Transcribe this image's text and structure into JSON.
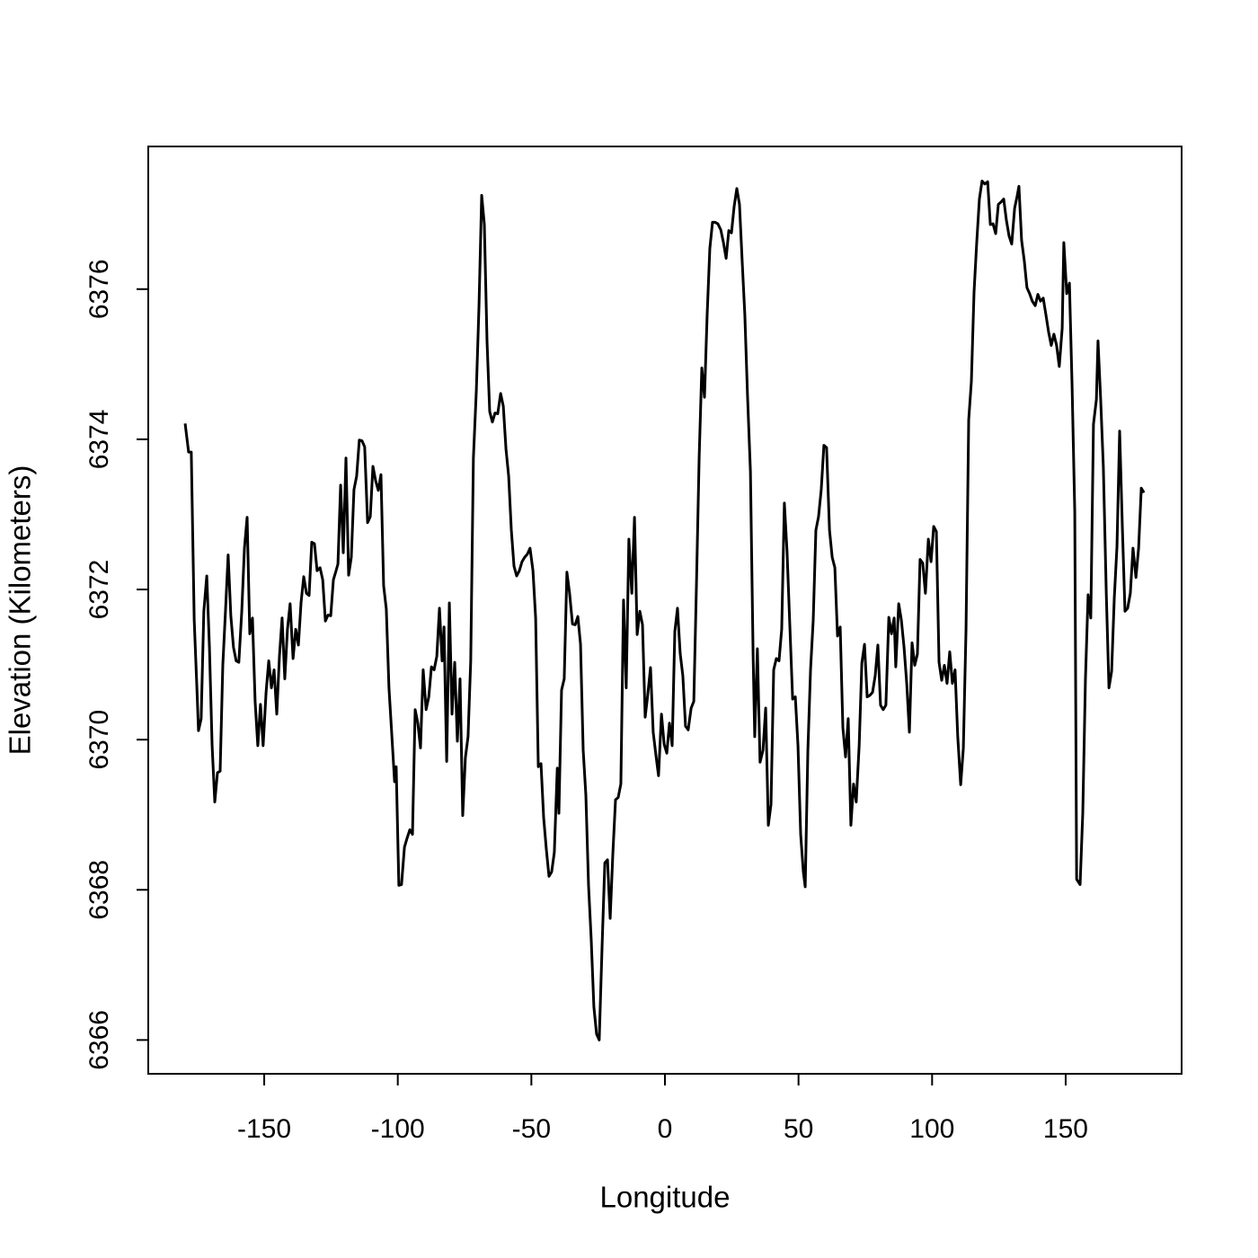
{
  "chart_data": {
    "type": "line",
    "xlabel": "Longitude",
    "ylabel": "Elevation (Kilometers)",
    "color": "#000000",
    "xlim": [
      -193.4,
      193.4
    ],
    "xticks": [
      -150,
      -100,
      -50,
      0,
      50,
      100,
      150
    ],
    "ylim": [
      6365.55,
      6377.9
    ],
    "yticks": [
      6366,
      6368,
      6370,
      6372,
      6374,
      6376
    ],
    "x": [
      -179.6,
      -178.3,
      -177.3,
      -176.2,
      -175.2,
      -174.6,
      -173.6,
      -172.6,
      -171.5,
      -170.5,
      -169.5,
      -168.5,
      -167.5,
      -166.5,
      -165.5,
      -164.5,
      -163.5,
      -162.5,
      -161.5,
      -160.5,
      -159.5,
      -158.4,
      -157.4,
      -156.4,
      -155.4,
      -154.4,
      -153.4,
      -152.4,
      -151.4,
      -150.4,
      -149.3,
      -148.3,
      -147.3,
      -146.3,
      -145.3,
      -144.3,
      -143.3,
      -142.3,
      -141.3,
      -140.3,
      -139.2,
      -138.2,
      -137.2,
      -136.2,
      -135.2,
      -134.2,
      -133.2,
      -132.2,
      -131.2,
      -130.2,
      -129.1,
      -128.1,
      -127.1,
      -126.1,
      -125.1,
      -124.1,
      -123.1,
      -122.4,
      -121.4,
      -120.4,
      -119.4,
      -118.4,
      -117.4,
      -116.4,
      -115.4,
      -114.4,
      -113.4,
      -112.4,
      -111.3,
      -110.3,
      -109.3,
      -108.3,
      -107.3,
      -106.3,
      -105.3,
      -104.3,
      -103.3,
      -102.3,
      -101.2,
      -100.6,
      -99.6,
      -98.6,
      -97.5,
      -96.5,
      -95.5,
      -94.5,
      -93.5,
      -92.5,
      -91.5,
      -90.5,
      -89.4,
      -88.4,
      -87.4,
      -86.4,
      -85.4,
      -84.4,
      -83.4,
      -82.7,
      -81.7,
      -80.7,
      -79.7,
      -78.7,
      -77.7,
      -76.7,
      -75.7,
      -74.7,
      -73.7,
      -72.7,
      -71.7,
      -70.6,
      -69.6,
      -68.6,
      -67.6,
      -66.6,
      -65.6,
      -64.6,
      -63.6,
      -62.6,
      -61.5,
      -60.5,
      -59.5,
      -58.5,
      -57.5,
      -56.5,
      -55.5,
      -54.5,
      -53.5,
      -52.5,
      -51.5,
      -50.5,
      -49.4,
      -48.4,
      -47.4,
      -46.4,
      -45.4,
      -44.4,
      -43.4,
      -42.4,
      -41.4,
      -40.3,
      -39.7,
      -38.7,
      -37.7,
      -36.7,
      -35.7,
      -34.6,
      -33.6,
      -32.6,
      -31.6,
      -30.6,
      -29.6,
      -28.6,
      -27.6,
      -26.6,
      -25.6,
      -24.6,
      -23.5,
      -22.5,
      -21.5,
      -20.5,
      -19.5,
      -18.5,
      -17.5,
      -16.5,
      -15.5,
      -14.5,
      -13.5,
      -12.4,
      -11.4,
      -10.4,
      -9.4,
      -8.4,
      -7.4,
      -6.4,
      -5.4,
      -4.4,
      -3.4,
      -2.4,
      -1.3,
      -0.3,
      0.7,
      1.7,
      2.7,
      3.7,
      4.7,
      5.7,
      6.7,
      7.7,
      8.7,
      9.8,
      10.8,
      11.8,
      12.8,
      13.8,
      14.8,
      15.8,
      16.8,
      17.8,
      18.8,
      19.8,
      20.9,
      21.9,
      22.9,
      23.9,
      24.9,
      25.9,
      26.9,
      27.9,
      28.9,
      29.9,
      30.9,
      32.0,
      33.0,
      33.6,
      34.6,
      35.6,
      36.7,
      37.7,
      38.7,
      39.7,
      40.7,
      41.7,
      42.7,
      43.7,
      44.7,
      45.7,
      46.8,
      47.8,
      48.8,
      49.8,
      50.8,
      51.8,
      52.5,
      53.5,
      54.5,
      55.5,
      56.5,
      57.5,
      58.5,
      59.5,
      60.5,
      61.6,
      62.6,
      63.6,
      64.6,
      65.6,
      66.6,
      67.6,
      68.6,
      69.6,
      70.6,
      71.6,
      72.7,
      73.7,
      74.7,
      75.7,
      76.7,
      77.7,
      78.7,
      79.7,
      80.7,
      81.7,
      82.7,
      83.8,
      84.8,
      85.8,
      86.4,
      87.5,
      88.5,
      89.5,
      90.5,
      91.5,
      92.5,
      93.5,
      94.5,
      95.5,
      96.5,
      97.5,
      98.6,
      99.6,
      100.6,
      101.6,
      102.6,
      103.6,
      104.6,
      105.6,
      106.6,
      107.6,
      108.6,
      109.6,
      110.7,
      111.7,
      112.7,
      113.7,
      114.7,
      115.7,
      116.7,
      117.7,
      118.7,
      119.7,
      120.8,
      121.8,
      122.8,
      123.8,
      124.8,
      125.8,
      126.8,
      127.8,
      128.8,
      129.8,
      130.9,
      131.9,
      132.5,
      133.5,
      134.5,
      135.5,
      136.5,
      137.5,
      138.6,
      139.6,
      140.6,
      141.6,
      142.6,
      143.6,
      144.6,
      145.6,
      146.6,
      147.6,
      148.7,
      149.3,
      150.4,
      151.4,
      152.4,
      153.4,
      154.1,
      155.4,
      156.4,
      157.4,
      158.4,
      159.4,
      160.4,
      161.5,
      162.1,
      163.1,
      164.1,
      165.2,
      166.2,
      167.2,
      168.2,
      169.2,
      170.2,
      171.2,
      172.2,
      173.2,
      174.2,
      175.2,
      176.3,
      177.3,
      178.3,
      179.3
    ],
    "values": [
      6374.21,
      6373.83,
      6373.83,
      6371.59,
      6370.69,
      6370.12,
      6370.28,
      6371.71,
      6372.18,
      6371.23,
      6369.92,
      6369.17,
      6369.56,
      6369.58,
      6370.99,
      6371.71,
      6372.46,
      6371.65,
      6371.23,
      6371.05,
      6371.03,
      6371.71,
      6372.55,
      6372.96,
      6371.41,
      6371.62,
      6370.51,
      6369.92,
      6370.47,
      6369.92,
      6370.63,
      6371.05,
      6370.69,
      6370.93,
      6370.34,
      6371.11,
      6371.62,
      6370.81,
      6371.47,
      6371.81,
      6371.08,
      6371.47,
      6371.26,
      6371.83,
      6372.17,
      6371.95,
      6371.92,
      6372.63,
      6372.61,
      6372.25,
      6372.29,
      6372.13,
      6371.58,
      6371.66,
      6371.65,
      6372.13,
      6372.25,
      6372.34,
      6373.39,
      6372.49,
      6373.75,
      6372.19,
      6372.43,
      6373.33,
      6373.51,
      6373.99,
      6373.98,
      6373.9,
      6372.89,
      6372.97,
      6373.64,
      6373.45,
      6373.32,
      6373.53,
      6372.05,
      6371.74,
      6370.69,
      6370.1,
      6369.44,
      6369.64,
      6368.06,
      6368.07,
      6368.57,
      6368.69,
      6368.8,
      6368.74,
      6370.4,
      6370.22,
      6369.89,
      6370.93,
      6370.4,
      6370.57,
      6370.97,
      6370.93,
      6371.11,
      6371.75,
      6371.05,
      6371.5,
      6369.71,
      6371.82,
      6370.34,
      6371.03,
      6369.98,
      6370.81,
      6368.99,
      6369.76,
      6370.04,
      6371.05,
      6373.75,
      6374.65,
      6375.78,
      6377.25,
      6376.86,
      6375.31,
      6374.37,
      6374.23,
      6374.35,
      6374.34,
      6374.61,
      6374.44,
      6373.87,
      6373.51,
      6372.79,
      6372.31,
      6372.18,
      6372.25,
      6372.37,
      6372.43,
      6372.47,
      6372.55,
      6372.25,
      6371.62,
      6369.64,
      6369.68,
      6368.96,
      6368.54,
      6368.18,
      6368.24,
      6368.5,
      6369.62,
      6369.02,
      6370.66,
      6370.81,
      6372.23,
      6371.95,
      6371.54,
      6371.53,
      6371.64,
      6371.27,
      6369.86,
      6369.26,
      6368.06,
      6367.34,
      6366.44,
      6366.08,
      6366.0,
      6367.28,
      6368.36,
      6368.4,
      6367.62,
      6368.48,
      6369.2,
      6369.23,
      6369.41,
      6371.86,
      6370.69,
      6372.67,
      6371.95,
      6372.96,
      6371.4,
      6371.71,
      6371.53,
      6370.3,
      6370.61,
      6370.96,
      6370.1,
      6369.8,
      6369.52,
      6370.34,
      6369.94,
      6369.82,
      6370.22,
      6369.92,
      6371.44,
      6371.75,
      6371.15,
      6370.85,
      6370.18,
      6370.13,
      6370.42,
      6370.51,
      6372.07,
      6373.75,
      6374.95,
      6374.56,
      6375.66,
      6376.54,
      6376.89,
      6376.89,
      6376.87,
      6376.79,
      6376.62,
      6376.41,
      6376.78,
      6376.75,
      6377.1,
      6377.34,
      6377.13,
      6376.38,
      6375.66,
      6374.59,
      6373.57,
      6371.14,
      6370.04,
      6371.21,
      6369.7,
      6369.86,
      6370.42,
      6368.86,
      6369.14,
      6370.93,
      6371.08,
      6371.05,
      6371.47,
      6373.15,
      6372.51,
      6371.47,
      6370.54,
      6370.57,
      6369.92,
      6368.74,
      6368.24,
      6368.04,
      6369.86,
      6370.93,
      6371.59,
      6372.79,
      6372.97,
      6373.33,
      6373.92,
      6373.89,
      6372.79,
      6372.43,
      6372.29,
      6371.38,
      6371.5,
      6370.16,
      6369.77,
      6370.28,
      6368.86,
      6369.41,
      6369.17,
      6369.92,
      6371.02,
      6371.27,
      6370.57,
      6370.59,
      6370.63,
      6370.85,
      6371.26,
      6370.46,
      6370.4,
      6370.46,
      6371.63,
      6371.41,
      6371.62,
      6370.97,
      6371.81,
      6371.59,
      6371.23,
      6370.75,
      6370.1,
      6371.29,
      6370.99,
      6371.14,
      6372.4,
      6372.35,
      6371.95,
      6372.67,
      6372.37,
      6372.84,
      6372.77,
      6371.03,
      6370.79,
      6370.99,
      6370.75,
      6371.17,
      6370.75,
      6370.93,
      6370.04,
      6369.4,
      6369.89,
      6371.47,
      6374.26,
      6374.77,
      6375.96,
      6376.62,
      6377.2,
      6377.44,
      6377.4,
      6377.43,
      6376.86,
      6376.87,
      6376.74,
      6377.13,
      6377.16,
      6377.2,
      6376.92,
      6376.71,
      6376.6,
      6377.08,
      6377.25,
      6377.37,
      6376.65,
      6376.38,
      6376.02,
      6375.94,
      6375.84,
      6375.78,
      6375.93,
      6375.84,
      6375.88,
      6375.66,
      6375.43,
      6375.25,
      6375.4,
      6375.25,
      6374.97,
      6375.48,
      6376.62,
      6375.94,
      6376.08,
      6374.71,
      6373.03,
      6368.14,
      6368.07,
      6369.02,
      6370.81,
      6371.93,
      6371.62,
      6374.2,
      6374.53,
      6375.31,
      6374.53,
      6373.63,
      6371.95,
      6370.69,
      6370.91,
      6371.89,
      6372.57,
      6374.11,
      6372.85,
      6371.71,
      6371.75,
      6371.95,
      6372.55,
      6372.16,
      6372.55,
      6373.35,
      6373.29
    ]
  }
}
